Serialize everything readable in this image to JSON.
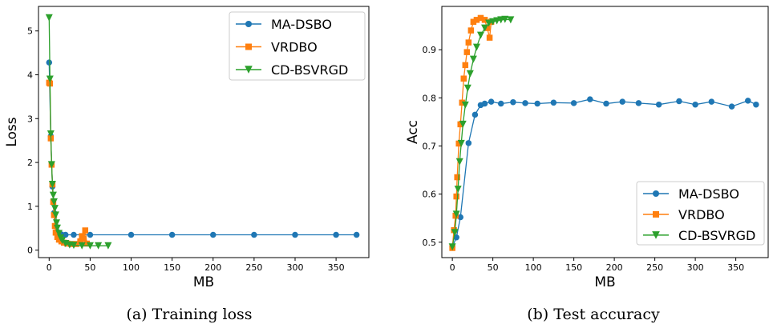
{
  "colors": {
    "ma_dsbo": "#1f77b4",
    "vrdbo": "#ff7f0e",
    "cd_bsvrgd": "#2ca02c"
  },
  "chart_data": [
    {
      "type": "line",
      "caption": "(a) Training loss",
      "xlabel": "MB",
      "ylabel": "Loss",
      "xlim": [
        -13,
        390
      ],
      "ylim": [
        -0.17,
        5.56
      ],
      "xticks": [
        0,
        50,
        100,
        150,
        200,
        250,
        300,
        350
      ],
      "yticks": [
        0,
        1,
        2,
        3,
        4,
        5
      ],
      "legend": "top-right",
      "grid": false,
      "series": [
        {
          "name": "MA-DSBO",
          "marker": "circle",
          "x": [
            0,
            2,
            4,
            6,
            8,
            10,
            15,
            20,
            30,
            50,
            100,
            150,
            200,
            250,
            300,
            350,
            375
          ],
          "y": [
            4.28,
            2.6,
            1.45,
            0.85,
            0.55,
            0.42,
            0.36,
            0.35,
            0.35,
            0.35,
            0.35,
            0.35,
            0.35,
            0.35,
            0.35,
            0.35,
            0.35
          ]
        },
        {
          "name": "VRDBO",
          "marker": "square",
          "x": [
            0,
            1,
            2,
            3,
            4,
            5,
            6,
            7,
            8,
            10,
            12,
            15,
            18,
            22,
            27,
            33,
            38,
            40,
            42,
            44,
            46
          ],
          "y": [
            3.82,
            3.8,
            2.55,
            1.95,
            1.5,
            1.1,
            0.8,
            0.55,
            0.4,
            0.3,
            0.24,
            0.2,
            0.17,
            0.15,
            0.14,
            0.14,
            0.2,
            0.32,
            0.26,
            0.45,
            0.15
          ]
        },
        {
          "name": "CD-BSVRGD",
          "marker": "triangle-down",
          "x": [
            0,
            1,
            2,
            3,
            4,
            5,
            6,
            7,
            8,
            9,
            10,
            12,
            14,
            16,
            20,
            25,
            30,
            40,
            50,
            60,
            72
          ],
          "y": [
            5.3,
            3.9,
            2.65,
            1.95,
            1.5,
            1.25,
            1.1,
            0.95,
            0.8,
            0.62,
            0.5,
            0.38,
            0.28,
            0.22,
            0.15,
            0.12,
            0.11,
            0.1,
            0.1,
            0.1,
            0.1
          ]
        }
      ]
    },
    {
      "type": "line",
      "caption": "(b) Test accuracy",
      "xlabel": "MB",
      "ylabel": "Acc",
      "xlim": [
        -13,
        390
      ],
      "ylim": [
        0.468,
        0.99
      ],
      "xticks": [
        0,
        50,
        100,
        150,
        200,
        250,
        300,
        350
      ],
      "yticks": [
        0.5,
        0.6,
        0.7,
        0.8,
        0.9
      ],
      "legend": "bottom-right",
      "grid": false,
      "series": [
        {
          "name": "MA-DSBO",
          "marker": "circle",
          "x": [
            0,
            5,
            10,
            20,
            28,
            35,
            40,
            48,
            60,
            75,
            90,
            105,
            125,
            150,
            170,
            190,
            210,
            230,
            255,
            280,
            300,
            320,
            345,
            365,
            375
          ],
          "y": [
            0.49,
            0.51,
            0.552,
            0.706,
            0.765,
            0.785,
            0.788,
            0.792,
            0.788,
            0.791,
            0.789,
            0.788,
            0.79,
            0.789,
            0.797,
            0.788,
            0.792,
            0.789,
            0.786,
            0.793,
            0.786,
            0.792,
            0.782,
            0.794,
            0.786
          ]
        },
        {
          "name": "VRDBO",
          "marker": "square",
          "x": [
            0,
            2,
            4,
            5,
            6,
            8,
            10,
            12,
            14,
            16,
            18,
            20,
            23,
            26,
            30,
            35,
            40,
            43,
            46,
            48
          ],
          "y": [
            0.488,
            0.525,
            0.555,
            0.595,
            0.635,
            0.705,
            0.745,
            0.79,
            0.84,
            0.868,
            0.895,
            0.915,
            0.94,
            0.958,
            0.962,
            0.966,
            0.962,
            0.945,
            0.925,
            0.958
          ]
        },
        {
          "name": "CD-BSVRGD",
          "marker": "triangle-down",
          "x": [
            0,
            3,
            5,
            7,
            9,
            11,
            13,
            16,
            19,
            22,
            26,
            30,
            35,
            40,
            45,
            50,
            55,
            60,
            65,
            72
          ],
          "y": [
            0.49,
            0.52,
            0.558,
            0.61,
            0.667,
            0.705,
            0.745,
            0.785,
            0.82,
            0.85,
            0.88,
            0.905,
            0.93,
            0.945,
            0.955,
            0.958,
            0.96,
            0.962,
            0.963,
            0.962
          ]
        }
      ]
    }
  ]
}
